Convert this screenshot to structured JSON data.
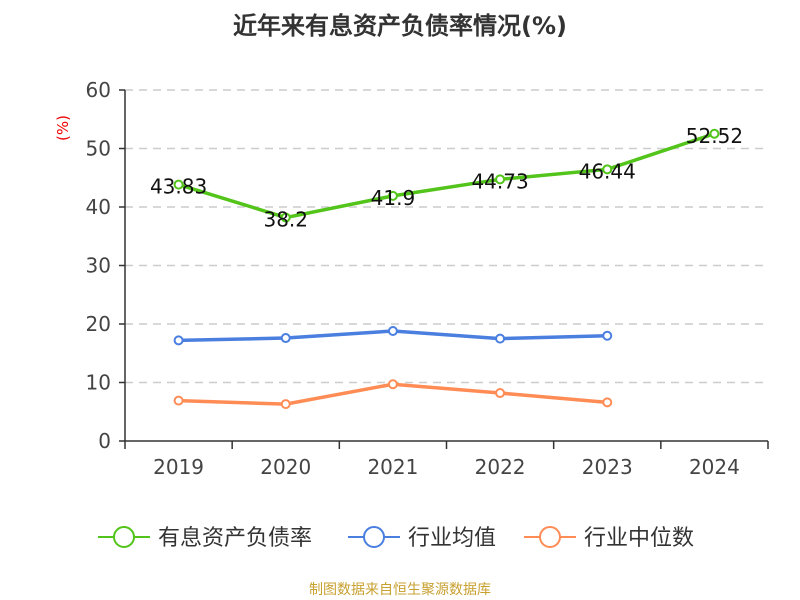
{
  "chart_data": {
    "type": "line",
    "title": "近年来有息资产负债率情况(%)",
    "ylabel": "(%)",
    "categories": [
      "2019",
      "2020",
      "2021",
      "2022",
      "2023",
      "2024"
    ],
    "ylim": [
      0,
      60
    ],
    "yticks": [
      0,
      10,
      20,
      30,
      40,
      50,
      60
    ],
    "grid": true,
    "legend_position": "bottom",
    "series": [
      {
        "name": "有息资产负债率",
        "color": "#52c41a",
        "values": [
          43.83,
          38.2,
          41.9,
          44.73,
          46.44,
          52.52
        ],
        "labels": [
          "43.83",
          "38.2",
          "41.9",
          "44.73",
          "46.44",
          "52.52"
        ]
      },
      {
        "name": "行业均值",
        "color": "#4a7fe0",
        "values": [
          17.2,
          17.6,
          18.8,
          17.5,
          18.0,
          null
        ]
      },
      {
        "name": "行业中位数",
        "color": "#ff8c55",
        "values": [
          6.9,
          6.3,
          9.7,
          8.2,
          6.6,
          null
        ]
      }
    ]
  },
  "source": "制图数据来自恒生聚源数据库"
}
